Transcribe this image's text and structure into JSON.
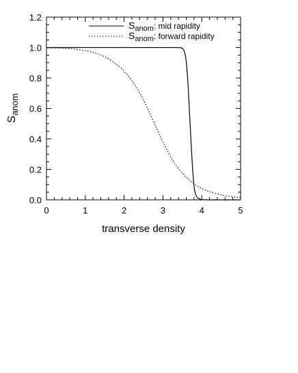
{
  "chart_data": {
    "type": "line",
    "xlabel": "transverse density",
    "ylabel": {
      "main": "S",
      "sub": "anom"
    },
    "xlim": [
      0,
      5
    ],
    "ylim": [
      0,
      1.2
    ],
    "xticks": [
      "0",
      "1",
      "2",
      "3",
      "4",
      "5"
    ],
    "yticks": [
      "0.0",
      "0.2",
      "0.4",
      "0.6",
      "0.8",
      "1.0",
      "1.2"
    ],
    "grid": false,
    "legend_position": "top-right",
    "series": [
      {
        "name": {
          "main": "S",
          "sub": "anom",
          "rest": ": mid rapidity"
        },
        "style": "solid",
        "color": "#000000",
        "x": [
          0,
          0.5,
          1,
          1.5,
          2,
          2.5,
          3,
          3.3,
          3.45,
          3.5,
          3.55,
          3.6,
          3.65,
          3.7,
          3.75,
          3.8,
          3.85,
          3.9,
          3.95,
          4.0,
          4.05,
          4.1,
          4.2,
          5
        ],
        "y": [
          1.0,
          1.0,
          1.0,
          1.0,
          1.0,
          1.0,
          1.0,
          1.0,
          0.999,
          0.995,
          0.975,
          0.91,
          0.74,
          0.5,
          0.26,
          0.09,
          0.03,
          0.012,
          0.005,
          0.002,
          0.001,
          0.0,
          0.0,
          0.0
        ]
      },
      {
        "name": {
          "main": "S",
          "sub": "anom",
          "rest": ": forward rapidity"
        },
        "style": "dotted",
        "color": "#000000",
        "x": [
          0,
          0.5,
          1.0,
          1.25,
          1.5,
          1.75,
          2.0,
          2.25,
          2.5,
          2.75,
          3.0,
          3.25,
          3.5,
          3.75,
          4.0,
          4.25,
          4.5,
          4.75,
          5.0
        ],
        "y": [
          0.998,
          0.995,
          0.98,
          0.965,
          0.94,
          0.9,
          0.845,
          0.765,
          0.655,
          0.52,
          0.38,
          0.26,
          0.175,
          0.115,
          0.075,
          0.05,
          0.033,
          0.022,
          0.015
        ]
      }
    ]
  }
}
